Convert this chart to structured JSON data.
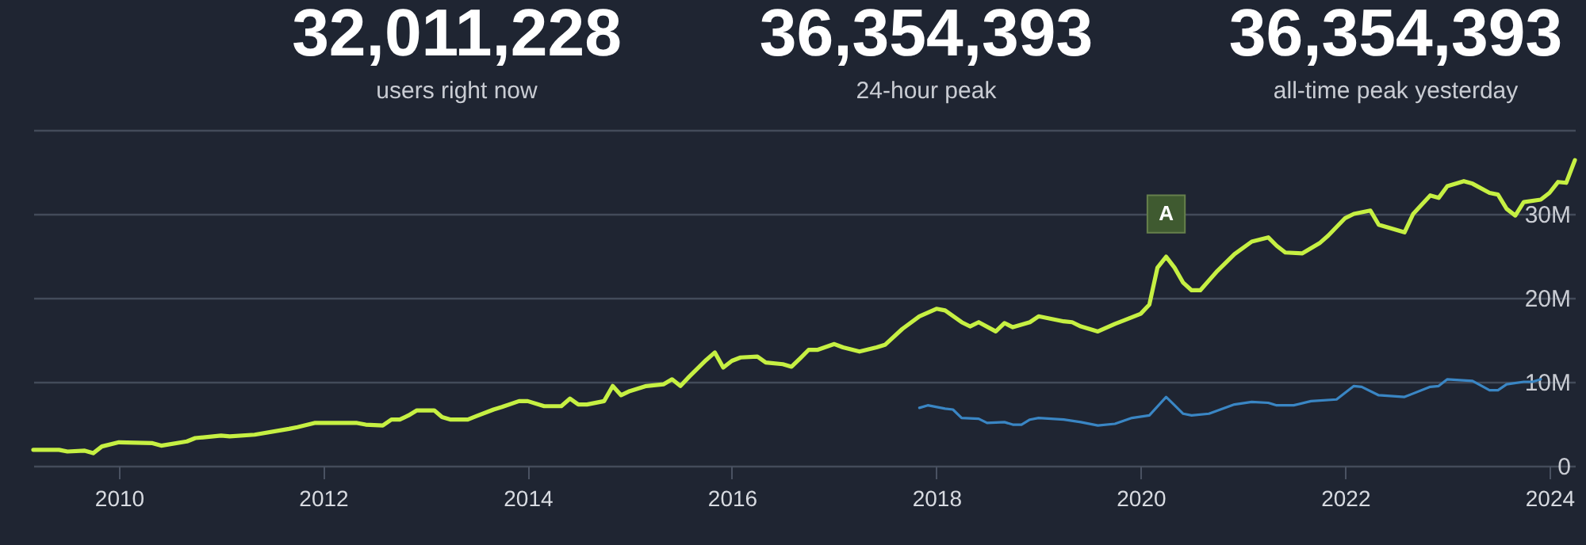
{
  "chart_data": [
    {
      "type": "other",
      "annotations": [
        "32,011,228",
        "users right now",
        "36,354,393",
        "24-hour peak",
        "36,354,393",
        "all-time peak yesterday"
      ]
    },
    {
      "type": "line",
      "xlim": [
        "2009-03",
        "2024-04"
      ],
      "xticks": [
        "2010",
        "2012",
        "2014",
        "2016",
        "2018",
        "2020",
        "2022",
        "2024"
      ],
      "ylim": [
        0,
        40
      ],
      "yticks": [
        0,
        {
          "value": 10,
          "label": "10M"
        },
        {
          "value": 20,
          "label": "20M"
        },
        {
          "value": 30,
          "label": "30M"
        },
        {
          "value": 40,
          "label": null
        }
      ],
      "grid": "y",
      "annotations": [
        {
          "text": "A",
          "x": "2020-04",
          "y": 24.9
        }
      ],
      "series": [
        {
          "color": "#c6f043",
          "x": [
            "2009-03",
            "2009-06",
            "2009-07",
            "2009-09",
            "2009-10",
            "2009-11",
            "2010-01",
            "2010-05",
            "2010-06",
            "2010-09",
            "2010-10",
            "2011-01",
            "2011-02",
            "2011-05",
            "2011-09",
            "2011-10",
            "2011-12",
            "2012-05",
            "2012-06",
            "2012-08",
            "2012-09",
            "2012-10",
            "2012-11",
            "2012-12",
            "2013-02",
            "2013-03",
            "2013-04",
            "2013-06",
            "2013-07",
            "2013-09",
            "2013-10",
            "2013-12",
            "2014-01",
            "2014-03",
            "2014-05",
            "2014-06",
            "2014-07",
            "2014-08",
            "2014-10",
            "2014-11",
            "2014-12",
            "2015-01",
            "2015-03",
            "2015-05",
            "2015-06",
            "2015-07",
            "2015-08",
            "2015-10",
            "2015-11",
            "2015-12",
            "2016-01",
            "2016-02",
            "2016-04",
            "2016-05",
            "2016-07",
            "2016-08",
            "2016-09",
            "2016-10",
            "2016-11",
            "2017-01",
            "2017-02",
            "2017-04",
            "2017-06",
            "2017-07",
            "2017-09",
            "2017-11",
            "2018-01",
            "2018-02",
            "2018-04",
            "2018-05",
            "2018-06",
            "2018-08",
            "2018-09",
            "2018-10",
            "2018-12",
            "2019-01",
            "2019-02",
            "2019-04",
            "2019-05",
            "2019-06",
            "2019-08",
            "2019-10",
            "2019-11",
            "2020-01",
            "2020-02",
            "2020-03",
            "2020-04",
            "2020-05",
            "2020-06",
            "2020-07",
            "2020-08",
            "2020-10",
            "2020-12",
            "2021-02",
            "2021-04",
            "2021-05",
            "2021-06",
            "2021-08",
            "2021-10",
            "2021-11",
            "2022-01",
            "2022-02",
            "2022-04",
            "2022-05",
            "2022-08",
            "2022-09",
            "2022-11",
            "2022-12",
            "2023-01",
            "2023-03",
            "2023-04",
            "2023-06",
            "2023-07",
            "2023-08",
            "2023-09",
            "2023-10",
            "2023-12",
            "2024-01",
            "2024-02",
            "2024-03",
            "2024-04"
          ],
          "values": [
            1.9,
            1.9,
            1.7,
            1.8,
            1.5,
            2.3,
            2.8,
            2.7,
            2.4,
            2.9,
            3.3,
            3.6,
            3.5,
            3.7,
            4.4,
            4.6,
            5.1,
            5.1,
            4.9,
            4.8,
            5.5,
            5.5,
            6.0,
            6.6,
            6.6,
            5.8,
            5.5,
            5.5,
            5.9,
            6.7,
            7.0,
            7.7,
            7.7,
            7.1,
            7.1,
            8.0,
            7.3,
            7.3,
            7.7,
            9.5,
            8.4,
            8.9,
            9.5,
            9.7,
            10.3,
            9.5,
            10.6,
            12.6,
            13.5,
            11.7,
            12.5,
            12.9,
            13.0,
            12.3,
            12.1,
            11.8,
            12.8,
            13.8,
            13.8,
            14.5,
            14.1,
            13.6,
            14.1,
            14.4,
            16.3,
            17.8,
            18.7,
            18.5,
            17.1,
            16.6,
            17.1,
            16.0,
            17.0,
            16.5,
            17.1,
            17.8,
            17.6,
            17.2,
            17.1,
            16.6,
            16.0,
            16.9,
            17.3,
            18.1,
            19.2,
            23.6,
            24.9,
            23.6,
            21.8,
            20.9,
            20.9,
            23.2,
            25.2,
            26.7,
            27.2,
            26.2,
            25.4,
            25.3,
            26.5,
            27.4,
            29.5,
            30.0,
            30.4,
            28.7,
            27.8,
            30.0,
            32.2,
            31.9,
            33.3,
            33.9,
            33.6,
            32.5,
            32.3,
            30.6,
            29.8,
            31.4,
            31.7,
            32.5,
            33.8,
            33.7,
            36.4
          ]
        },
        {
          "color": "#3a86c4",
          "x": [
            "2017-11",
            "2017-12",
            "2018-02",
            "2018-03",
            "2018-04",
            "2018-06",
            "2018-07",
            "2018-09",
            "2018-10",
            "2018-11",
            "2018-12",
            "2019-01",
            "2019-04",
            "2019-06",
            "2019-08",
            "2019-10",
            "2019-12",
            "2020-02",
            "2020-04",
            "2020-06",
            "2020-07",
            "2020-09",
            "2020-12",
            "2021-02",
            "2021-04",
            "2021-05",
            "2021-07",
            "2021-09",
            "2021-12",
            "2022-02",
            "2022-03",
            "2022-05",
            "2022-08",
            "2022-11",
            "2022-12",
            "2023-01",
            "2023-04",
            "2023-06",
            "2023-07",
            "2023-08",
            "2023-10",
            "2023-11",
            "2023-12"
          ],
          "values": [
            6.9,
            7.2,
            6.8,
            6.7,
            5.7,
            5.6,
            5.1,
            5.2,
            4.9,
            4.9,
            5.5,
            5.7,
            5.5,
            5.2,
            4.8,
            5.0,
            5.7,
            6.0,
            8.2,
            6.2,
            6.0,
            6.2,
            7.3,
            7.6,
            7.5,
            7.2,
            7.2,
            7.7,
            7.9,
            9.5,
            9.4,
            8.4,
            8.2,
            9.4,
            9.5,
            10.3,
            10.1,
            9.0,
            9.0,
            9.7,
            10.0,
            10.0,
            10.3
          ]
        }
      ]
    }
  ]
}
